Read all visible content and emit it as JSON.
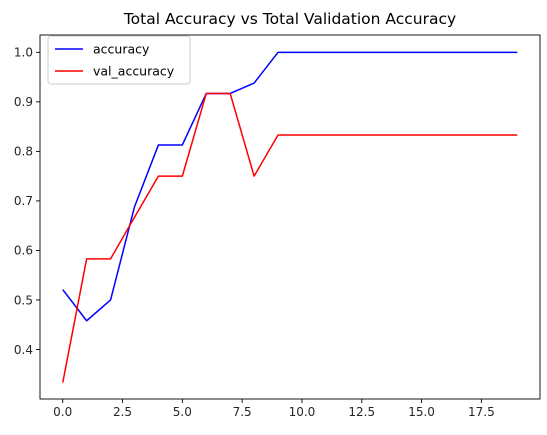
{
  "chart_data": {
    "type": "line",
    "title": "Total Accuracy vs Total Validation Accuracy",
    "xlabel": "",
    "ylabel": "",
    "xlim": [
      -0.95,
      19.95
    ],
    "ylim": [
      0.3,
      1.035
    ],
    "xticks": [
      0.0,
      2.5,
      5.0,
      7.5,
      10.0,
      12.5,
      15.0,
      17.5
    ],
    "xtick_labels": [
      "0.0",
      "2.5",
      "5.0",
      "7.5",
      "10.0",
      "12.5",
      "15.0",
      "17.5"
    ],
    "yticks": [
      0.4,
      0.5,
      0.6,
      0.7,
      0.8,
      0.9,
      1.0
    ],
    "ytick_labels": [
      "0.4",
      "0.5",
      "0.6",
      "0.7",
      "0.8",
      "0.9",
      "1.0"
    ],
    "grid": false,
    "legend_position": "top-left",
    "x": [
      0,
      1,
      2,
      3,
      4,
      5,
      6,
      7,
      8,
      9,
      10,
      11,
      12,
      13,
      14,
      15,
      16,
      17,
      18,
      19
    ],
    "series": [
      {
        "name": "accuracy",
        "color": "#0000ff",
        "values": [
          0.521,
          0.458,
          0.5,
          0.688,
          0.813,
          0.813,
          0.917,
          0.917,
          0.938,
          1.0,
          1.0,
          1.0,
          1.0,
          1.0,
          1.0,
          1.0,
          1.0,
          1.0,
          1.0,
          1.0
        ]
      },
      {
        "name": "val_accuracy",
        "color": "#ff0000",
        "values": [
          0.333,
          0.583,
          0.583,
          0.667,
          0.75,
          0.75,
          0.917,
          0.917,
          0.75,
          0.833,
          0.833,
          0.833,
          0.833,
          0.833,
          0.833,
          0.833,
          0.833,
          0.833,
          0.833,
          0.833
        ]
      }
    ]
  }
}
